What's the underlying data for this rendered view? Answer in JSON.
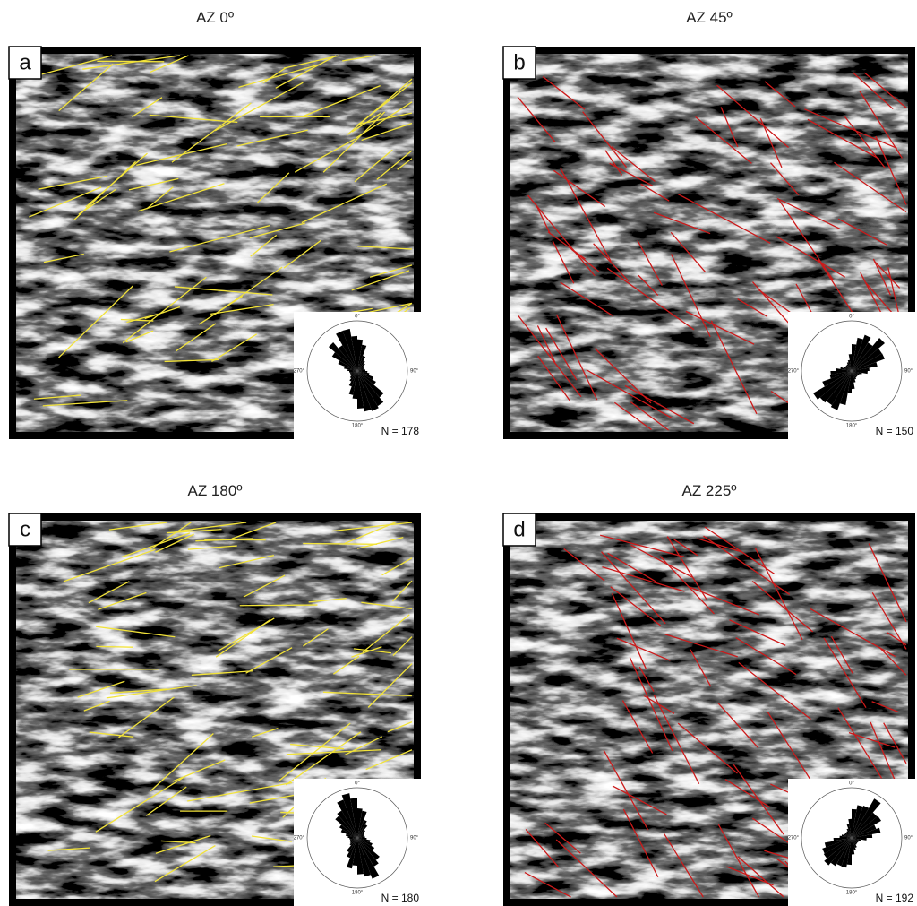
{
  "panels": [
    {
      "title": "AZ 0º",
      "letter": "a",
      "rose_labels": [
        "0°",
        "90°",
        "180°",
        "270°"
      ],
      "count_label": "N = 178"
    },
    {
      "title": "AZ 45º",
      "letter": "b",
      "rose_labels": [
        "0°",
        "90°",
        "180°",
        "270°"
      ],
      "count_label": "N = 150"
    },
    {
      "title": "AZ 180º",
      "letter": "c",
      "rose_labels": [
        "0°",
        "90°",
        "180°",
        "270°"
      ],
      "count_label": "N = 180"
    },
    {
      "title": "AZ 225º",
      "letter": "d",
      "rose_labels": [
        "0°",
        "90°",
        "180°",
        "270°"
      ],
      "count_label": "N = 192"
    }
  ]
}
